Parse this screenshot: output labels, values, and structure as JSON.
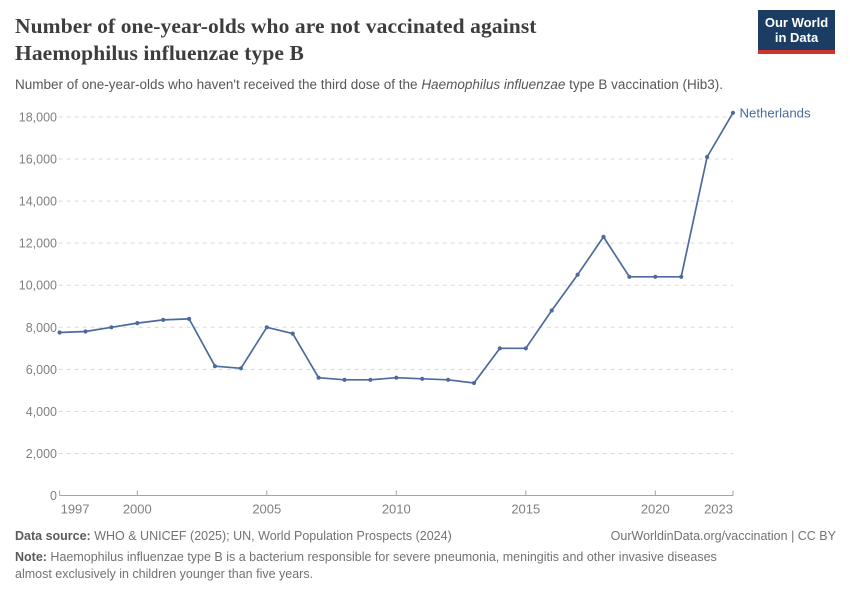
{
  "header": {
    "title_line1": "Number of one-year-olds who are not vaccinated against",
    "title_line2": "Haemophilus influenzae type B",
    "subtitle_prefix": "Number of one-year-olds who haven't received the third dose of the ",
    "subtitle_italic": "Haemophilus influenzae",
    "subtitle_suffix": " type B vaccination (Hib3).",
    "logo": {
      "line1": "Our World",
      "line2": "in Data"
    }
  },
  "chart_data": {
    "type": "line",
    "title": "Number of one-year-olds who are not vaccinated against Haemophilus influenzae type B",
    "xlabel": "",
    "ylabel": "",
    "x": [
      1997,
      1998,
      1999,
      2000,
      2001,
      2002,
      2003,
      2004,
      2005,
      2006,
      2007,
      2008,
      2009,
      2010,
      2011,
      2012,
      2013,
      2014,
      2015,
      2016,
      2017,
      2018,
      2019,
      2020,
      2021,
      2022,
      2023
    ],
    "series": [
      {
        "name": "Netherlands",
        "color": "#4c6a9d",
        "values": [
          7750,
          7800,
          8000,
          8200,
          8350,
          8400,
          6150,
          6050,
          8000,
          7700,
          5600,
          5500,
          5500,
          5600,
          5550,
          5500,
          5350,
          7000,
          7000,
          8800,
          10500,
          12300,
          10400,
          10400,
          10400,
          16100,
          18200
        ]
      }
    ],
    "entity_label": "Netherlands",
    "x_tick_labels": [
      1997,
      2000,
      2005,
      2010,
      2015,
      2020,
      2023
    ],
    "y_ticks": [
      0,
      2000,
      4000,
      6000,
      8000,
      10000,
      12000,
      14000,
      16000,
      18000
    ],
    "ylim": [
      0,
      18000
    ],
    "xlim": [
      1997,
      2023
    ],
    "grid": "horizontal-dashed",
    "legend_position": "end-of-line",
    "colors": {
      "line": "#4c6a9d",
      "gridline": "#d9d9d9",
      "axis": "#a5a5a5",
      "tick_label": "#808080"
    }
  },
  "footer": {
    "data_source_label": "Data source:",
    "data_source_text": " WHO & UNICEF (2025); UN, World Population Prospects (2024)",
    "attribution": "OurWorldinData.org/vaccination | CC BY",
    "note_label": "Note:",
    "note_text": " Haemophilus influenzae type B is a bacterium responsible for severe pneumonia, meningitis and other invasive diseases almost exclusively in children younger than five years."
  }
}
